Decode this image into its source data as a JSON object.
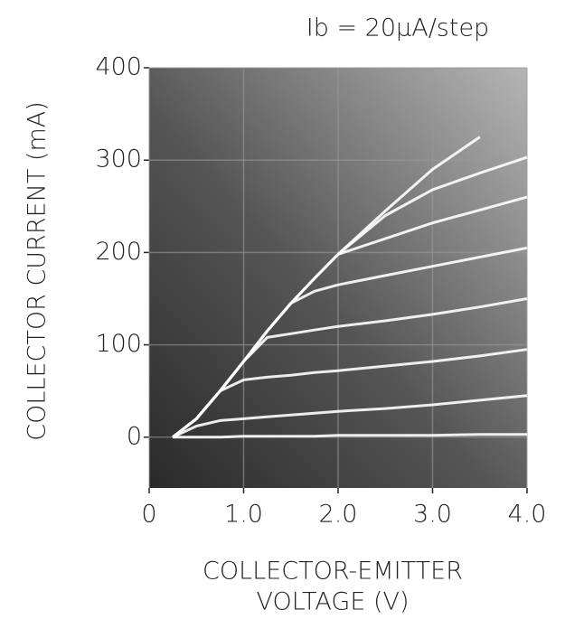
{
  "chart_data": {
    "type": "line",
    "title": "Ib = 20μA/step",
    "xlabel": [
      "COLLECTOR-EMITTER",
      "VOLTAGE (V)"
    ],
    "ylabel": "COLLECTOR CURRENT (mA)",
    "x": [
      0.25,
      0.5,
      0.75,
      1.0,
      1.25,
      1.5,
      1.75,
      2.0,
      2.5,
      3.0,
      3.5,
      4.0
    ],
    "series": [
      {
        "color": "#ffffff",
        "values": [
          0,
          0,
          0,
          1,
          1,
          1,
          1,
          2,
          2,
          2,
          3,
          3
        ]
      },
      {
        "color": "#ffffff",
        "values": [
          0,
          12,
          18,
          20,
          22,
          24,
          26,
          28,
          31,
          35,
          40,
          45
        ]
      },
      {
        "color": "#ffffff",
        "values": [
          0,
          20,
          50,
          62,
          65,
          67,
          70,
          72,
          77,
          82,
          88,
          95
        ]
      },
      {
        "color": "#ffffff",
        "values": [
          0,
          20,
          50,
          82,
          108,
          112,
          116,
          120,
          126,
          133,
          141,
          150
        ]
      },
      {
        "color": "#ffffff",
        "values": [
          0,
          20,
          50,
          82,
          115,
          145,
          158,
          165,
          175,
          185,
          195,
          205
        ]
      },
      {
        "color": "#ffffff",
        "values": [
          0,
          20,
          50,
          82,
          115,
          145,
          172,
          198,
          215,
          232,
          246,
          260
        ]
      },
      {
        "color": "#ffffff",
        "values": [
          0,
          20,
          50,
          82,
          115,
          145,
          172,
          198,
          240,
          268,
          286,
          303
        ]
      },
      {
        "color": "#ffffff",
        "values": [
          0,
          20,
          50,
          82,
          115,
          145,
          172,
          198,
          245,
          290,
          325,
          null
        ]
      }
    ],
    "xlim": [
      0,
      4.0
    ],
    "ylim": [
      -55,
      400
    ],
    "xticks": [
      0,
      {
        "value": 1,
        "label": "1.0"
      },
      {
        "value": 2,
        "label": "2.0"
      },
      {
        "value": 3,
        "label": "3.0"
      },
      {
        "value": 4,
        "label": "4.0"
      }
    ],
    "yticks": [
      0,
      100,
      200,
      300,
      400
    ],
    "grid": true
  }
}
